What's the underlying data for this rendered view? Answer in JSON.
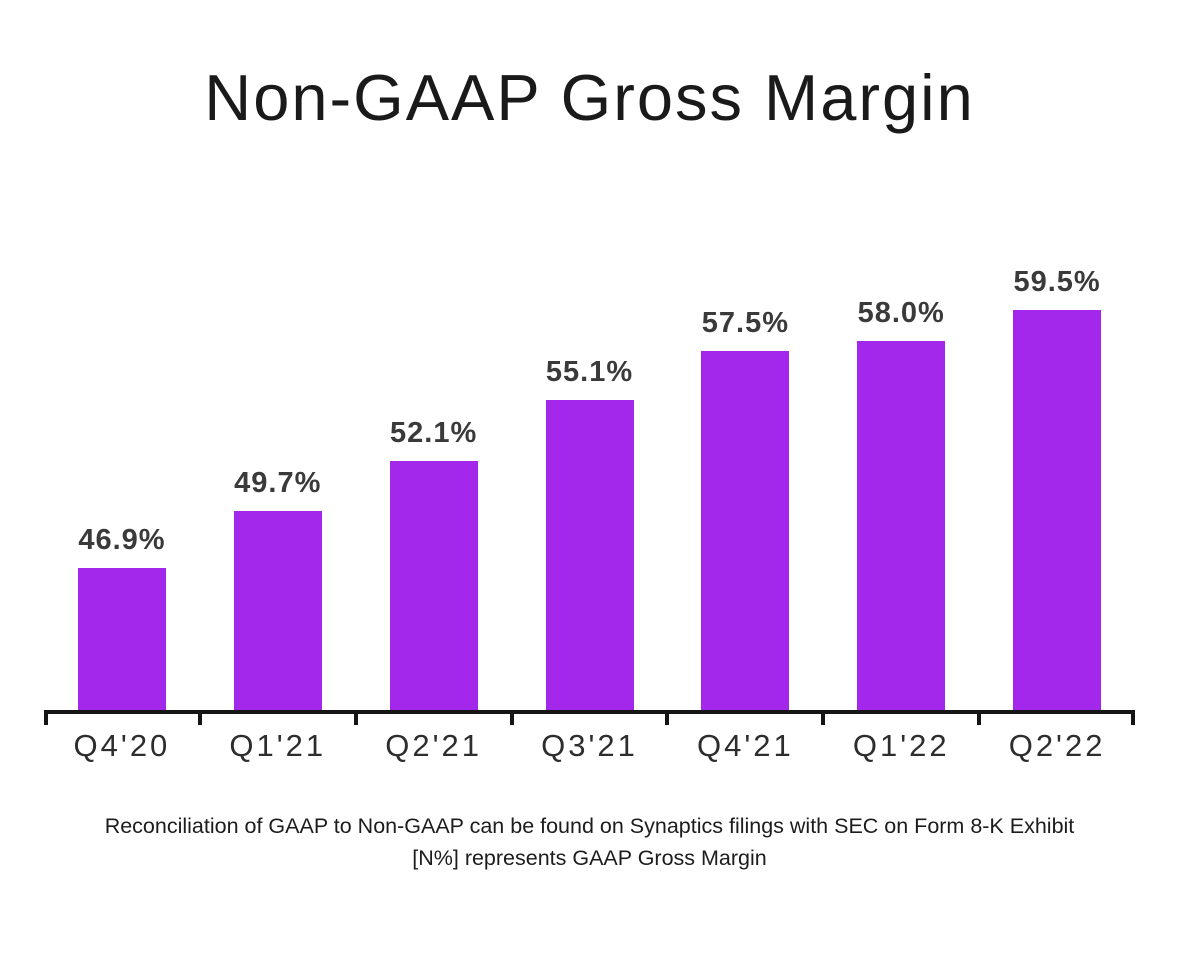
{
  "chart_data": {
    "type": "bar",
    "title": "Non-GAAP Gross Margin",
    "categories": [
      "Q4'20",
      "Q1'21",
      "Q2'21",
      "Q3'21",
      "Q4'21",
      "Q1'22",
      "Q2'22"
    ],
    "values": [
      46.9,
      49.7,
      52.1,
      55.1,
      57.5,
      58.0,
      59.5
    ],
    "value_labels": [
      "46.9%",
      "49.7%",
      "52.1%",
      "55.1%",
      "57.5%",
      "58.0%",
      "59.5%"
    ],
    "bar_color": "#A428EB",
    "axis_color": "#151515",
    "value_label_color": "#3A3A3A",
    "xlabel": "",
    "ylabel": "",
    "ylim": [
      40,
      64
    ],
    "grid": false,
    "legend": "none",
    "footnote": {
      "line1": "Reconciliation of GAAP to Non-GAAP can be found on Synaptics filings with SEC on Form 8-K Exhibit",
      "line2": "[N%] represents GAAP Gross Margin"
    }
  }
}
